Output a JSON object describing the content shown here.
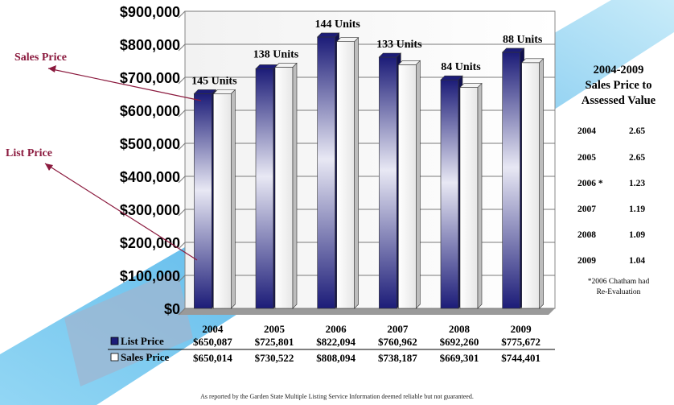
{
  "chart_data": {
    "type": "bar",
    "categories": [
      "2004",
      "2005",
      "2006",
      "2007",
      "2008",
      "2009"
    ],
    "series": [
      {
        "name": "List Price",
        "values": [
          650087,
          725801,
          822094,
          760962,
          692260,
          775672
        ],
        "labels": [
          "$650,087",
          "$725,801",
          "$822,094",
          "$760,962",
          "$692,260",
          "$775,672"
        ]
      },
      {
        "name": "Sales Price",
        "values": [
          650014,
          730522,
          808094,
          738187,
          669301,
          744401
        ],
        "labels": [
          "$650,014",
          "$730,522",
          "$808,094",
          "$738,187",
          "$669,301",
          "$744,401"
        ]
      }
    ],
    "unit_labels": [
      "145 Units",
      "138 Units",
      "144 Units",
      "133 Units",
      "84 Units",
      "88 Units"
    ],
    "ylim": [
      0,
      900000
    ],
    "yticks": [
      "$0",
      "$100,000",
      "$200,000",
      "$300,000",
      "$400,000",
      "$500,000",
      "$600,000",
      "$700,000",
      "$800,000",
      "$900,000"
    ],
    "grid": true,
    "colors": {
      "list": "#1c1c78",
      "sales": "#ffffff"
    }
  },
  "annotations": {
    "sales_price": "Sales Price",
    "list_price": "List Price"
  },
  "side_table": {
    "title_line1": "2004-2009",
    "title_line2": "Sales Price to",
    "title_line3": "Assessed Value",
    "rows": [
      {
        "year": "2004",
        "ratio": "2.65"
      },
      {
        "year": "2005",
        "ratio": "2.65"
      },
      {
        "year": "2006 *",
        "ratio": "1.23"
      },
      {
        "year": "2007",
        "ratio": "1.19"
      },
      {
        "year": "2008",
        "ratio": "1.09"
      },
      {
        "year": "2009",
        "ratio": "1.04"
      }
    ],
    "note_line1": "*2006 Chatham had",
    "note_line2": "Re-Evaluation"
  },
  "footer": "As reported by the Garden State Multiple Listing Service Information deemed reliable but not guaranteed.",
  "banner_colors": {
    "light": "#9fdcf5",
    "mid": "#3aa9e6"
  }
}
